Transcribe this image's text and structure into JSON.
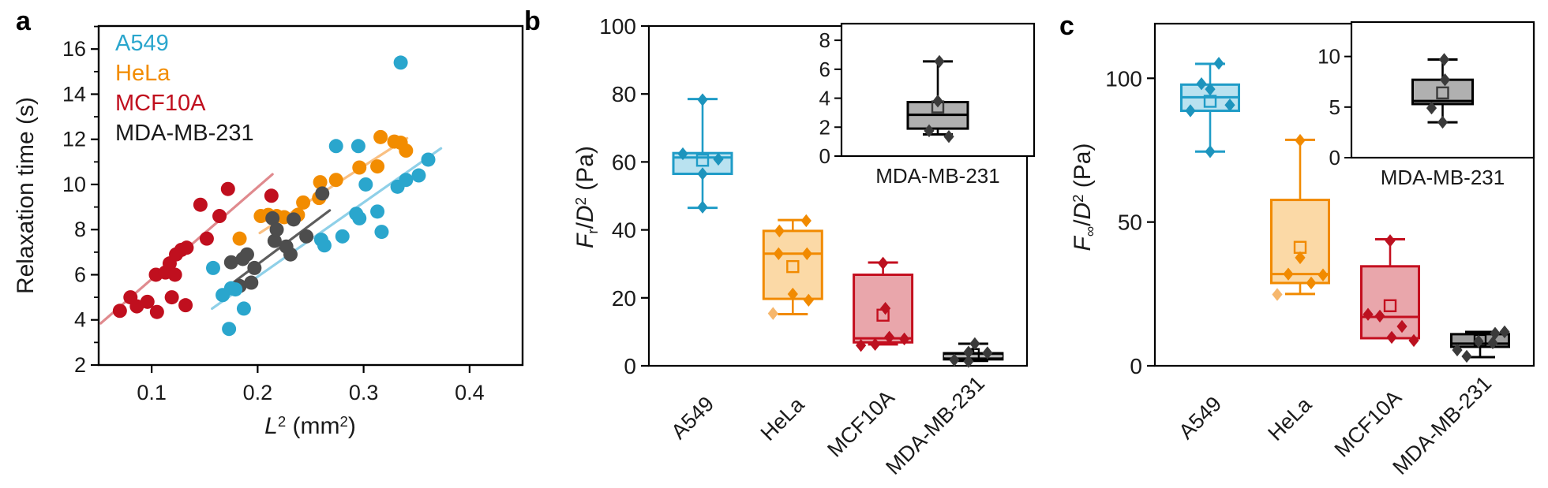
{
  "ui": {
    "panel_labels": [
      "a",
      "b",
      "c"
    ],
    "legend": [
      {
        "label": "A549",
        "color": "#2aa6cd"
      },
      {
        "label": "HeLa",
        "color": "#f28c00"
      },
      {
        "label": "MCF10A",
        "color": "#c00f1e"
      },
      {
        "label": "MDA-MB-231",
        "color": "#1a1a1a"
      }
    ],
    "rich_labels": {
      "xlabel_a": [
        [
          "L",
          "i"
        ],
        [
          "2",
          "sup"
        ],
        [
          " (mm",
          "n"
        ],
        [
          "2",
          "sup"
        ],
        [
          ")",
          "n"
        ]
      ],
      "ylabel_b": [
        [
          "F",
          "i"
        ],
        [
          "r",
          "sub"
        ],
        [
          "/",
          "n"
        ],
        [
          "D",
          "i"
        ],
        [
          "2",
          "sup"
        ],
        [
          " (Pa)",
          "n"
        ]
      ],
      "ylabel_c": [
        [
          "F",
          "i"
        ],
        [
          "∞",
          "sub"
        ],
        [
          "/",
          "n"
        ],
        [
          "D",
          "i"
        ],
        [
          "2",
          "sup"
        ],
        [
          " (Pa)",
          "n"
        ]
      ]
    }
  },
  "chart_data": [
    {
      "id": "a",
      "type": "scatter",
      "xlabel": "L^2 (mm^2)",
      "ylabel": "Relaxation time (s)",
      "xlim": [
        0.05,
        0.45
      ],
      "ylim": [
        2,
        17.02
      ],
      "x_ticks": [
        0.1,
        0.2,
        0.3,
        0.4
      ],
      "y_ticks": [
        2,
        4,
        6,
        8,
        10,
        12,
        14,
        16
      ],
      "y_minor": [
        3,
        5,
        7,
        9,
        11,
        13,
        15,
        17
      ],
      "grid": false,
      "legend_position": "top-left",
      "series": [
        {
          "name": "MCF10A",
          "color": "#c00f1e",
          "trend_color": "#e08a8e",
          "trend": [
            [
              0.052,
              3.85
            ],
            [
              0.214,
              10.45
            ]
          ],
          "points": [
            [
              0.07,
              4.4
            ],
            [
              0.08,
              5.0
            ],
            [
              0.086,
              4.6
            ],
            [
              0.096,
              4.8
            ],
            [
              0.105,
              4.35
            ],
            [
              0.104,
              6.0
            ],
            [
              0.113,
              6.1
            ],
            [
              0.117,
              6.5
            ],
            [
              0.119,
              5.0
            ],
            [
              0.122,
              6.0
            ],
            [
              0.123,
              6.9
            ],
            [
              0.128,
              7.1
            ],
            [
              0.133,
              7.2
            ],
            [
              0.132,
              4.65
            ],
            [
              0.146,
              9.1
            ],
            [
              0.152,
              7.6
            ],
            [
              0.164,
              8.6
            ],
            [
              0.172,
              9.8
            ],
            [
              0.213,
              9.5
            ]
          ]
        },
        {
          "name": "HeLa",
          "color": "#f28c00",
          "trend_color": "#f9c083",
          "trend": [
            [
              0.202,
              7.85
            ],
            [
              0.341,
              12.05
            ]
          ],
          "points": [
            [
              0.183,
              7.6
            ],
            [
              0.203,
              8.6
            ],
            [
              0.21,
              8.65
            ],
            [
              0.218,
              8.6
            ],
            [
              0.225,
              8.55
            ],
            [
              0.238,
              8.65
            ],
            [
              0.243,
              9.2
            ],
            [
              0.258,
              9.4
            ],
            [
              0.259,
              10.1
            ],
            [
              0.274,
              10.2
            ],
            [
              0.296,
              10.75
            ],
            [
              0.313,
              10.8
            ],
            [
              0.316,
              12.1
            ],
            [
              0.329,
              11.9
            ],
            [
              0.335,
              11.85
            ],
            [
              0.34,
              11.5
            ]
          ]
        },
        {
          "name": "MDA-MB-231",
          "color": "#4d4d4d",
          "trend_color": "#5d5d5d",
          "trend": [
            [
              0.174,
              5.55
            ],
            [
              0.268,
              8.85
            ]
          ],
          "points": [
            [
              0.175,
              6.55
            ],
            [
              0.183,
              5.5
            ],
            [
              0.186,
              6.7
            ],
            [
              0.19,
              6.9
            ],
            [
              0.194,
              5.65
            ],
            [
              0.197,
              6.3
            ],
            [
              0.214,
              8.5
            ],
            [
              0.216,
              7.5
            ],
            [
              0.218,
              8.0
            ],
            [
              0.227,
              7.25
            ],
            [
              0.231,
              6.9
            ],
            [
              0.234,
              8.45
            ],
            [
              0.246,
              7.7
            ],
            [
              0.261,
              9.6
            ]
          ]
        },
        {
          "name": "A549",
          "color": "#2aa6cd",
          "trend_color": "#8fd0e8",
          "trend": [
            [
              0.157,
              4.5
            ],
            [
              0.373,
              11.6
            ]
          ],
          "points": [
            [
              0.158,
              6.3
            ],
            [
              0.167,
              5.1
            ],
            [
              0.175,
              5.4
            ],
            [
              0.179,
              5.35
            ],
            [
              0.187,
              4.5
            ],
            [
              0.173,
              3.6
            ],
            [
              0.26,
              7.55
            ],
            [
              0.263,
              7.3
            ],
            [
              0.28,
              7.7
            ],
            [
              0.293,
              8.7
            ],
            [
              0.296,
              8.5
            ],
            [
              0.313,
              8.8
            ],
            [
              0.317,
              7.9
            ],
            [
              0.274,
              11.7
            ],
            [
              0.295,
              11.7
            ],
            [
              0.302,
              10.0
            ],
            [
              0.332,
              9.9
            ],
            [
              0.34,
              10.2
            ],
            [
              0.352,
              10.4
            ],
            [
              0.361,
              11.1
            ],
            [
              0.335,
              15.4
            ]
          ]
        }
      ]
    },
    {
      "id": "b",
      "type": "box",
      "ylabel": "F_r/D^2 (Pa)",
      "ylim": [
        0,
        100
      ],
      "y_ticks": [
        0,
        20,
        40,
        60,
        80,
        100
      ],
      "categories": [
        "A549",
        "HeLa",
        "MCF10A",
        "MDA-MB-231"
      ],
      "boxes": [
        {
          "name": "A549",
          "edge": "#1f9cc7",
          "fill": "#b9e2f0",
          "point": "#1d94bd",
          "lo": 46.5,
          "q1": 56.5,
          "med": 61.3,
          "q3": 62.6,
          "hi": 78.5,
          "mean": 60.5,
          "pts": [
            [
              -25,
              62.4
            ],
            [
              20,
              60.8
            ],
            [
              0,
              56.5
            ],
            [
              0,
              78.3
            ],
            [
              0,
              46.7
            ]
          ]
        },
        {
          "name": "HeLa",
          "edge": "#f18a00",
          "fill": "#fbd9a6",
          "point": "#f18a00",
          "lo": 15.2,
          "q1": 19.7,
          "med": 33,
          "q3": 39.7,
          "hi": 42.9,
          "mean": 29.2,
          "pts": [
            [
              -17,
              39.7
            ],
            [
              17,
              42.7
            ],
            [
              -18,
              33
            ],
            [
              18,
              33
            ],
            [
              0,
              21.1
            ],
            [
              20,
              19.3
            ],
            [
              -25,
              15.4,
              1
            ]
          ]
        },
        {
          "name": "MCF10A",
          "edge": "#c40f1f",
          "fill": "#e9a6ab",
          "point": "#bc1120",
          "lo": 6.3,
          "q1": 6.9,
          "med": 8.1,
          "q3": 26.8,
          "hi": 30.4,
          "mean": 14.9,
          "pts": [
            [
              0,
              30.2
            ],
            [
              3,
              16.9
            ],
            [
              8,
              8.4
            ],
            [
              27,
              7.9
            ],
            [
              -10,
              6.3
            ],
            [
              -28,
              6.0
            ]
          ]
        },
        {
          "name": "MDA-MB-231",
          "edge": "#000000",
          "fill": "#1f1f1f",
          "point": "#3a3a3a",
          "median_color": "#bbbbbb",
          "lo": 1.45,
          "q1": 1.9,
          "med": 2.85,
          "q3": 3.7,
          "hi": 6.5,
          "mean": 3.3,
          "pts": [
            [
              2,
              6.5
            ],
            [
              -6,
              4.0
            ],
            [
              18,
              3.8
            ],
            [
              -24,
              1.7
            ],
            [
              -6,
              1.3
            ]
          ]
        }
      ],
      "inset": {
        "label": "MDA-MB-231",
        "ylim": [
          0,
          9.15
        ],
        "y_ticks": [
          0,
          2,
          4,
          6,
          8
        ],
        "box": {
          "edge": "#000000",
          "fill": "#b0b0b0",
          "point": "#3a3a3a",
          "mean_color": "#3a3a3a",
          "lo": 1.5,
          "q1": 1.9,
          "med": 2.85,
          "q3": 3.73,
          "hi": 6.54,
          "mean": 3.4,
          "pts": [
            [
              2,
              6.54
            ],
            [
              0,
              3.8
            ],
            [
              -11,
              1.75
            ],
            [
              14,
              1.35
            ]
          ]
        }
      }
    },
    {
      "id": "c",
      "type": "box",
      "ylabel": "F_inf/D^2 (Pa)",
      "ylim": [
        0,
        119
      ],
      "y_ticks": [
        0,
        50,
        100
      ],
      "categories": [
        "A549",
        "HeLa",
        "MCF10A",
        "MDA-MB-231"
      ],
      "boxes": [
        {
          "name": "A549",
          "edge": "#1f9cc7",
          "fill": "#b9e2f0",
          "point": "#1d94bd",
          "lo": 74.5,
          "q1": 88.7,
          "med": 93.4,
          "q3": 97.8,
          "hi": 105,
          "mean": 92,
          "pts": [
            [
              11,
              105.2
            ],
            [
              -11,
              98.1
            ],
            [
              0,
              96.2
            ],
            [
              25,
              90.7
            ],
            [
              -25,
              88.7
            ],
            [
              0,
              74.5
            ]
          ]
        },
        {
          "name": "HeLa",
          "edge": "#f18a00",
          "fill": "#fbd9a6",
          "point": "#f18a00",
          "lo": 25,
          "q1": 28.8,
          "med": 31.9,
          "q3": 57.7,
          "hi": 78.6,
          "mean": 41.2,
          "pts": [
            [
              0,
              78.4
            ],
            [
              0,
              37.6
            ],
            [
              -15,
              31.9
            ],
            [
              29,
              31.6
            ],
            [
              14,
              28.8
            ],
            [
              -29,
              24.8,
              1
            ]
          ]
        },
        {
          "name": "MCF10A",
          "edge": "#c40f1f",
          "fill": "#e9a6ab",
          "point": "#bc1120",
          "lo": 9.6,
          "q1": 9.6,
          "med": 17.0,
          "q3": 34.6,
          "hi": 44,
          "mean": 20.9,
          "pts": [
            [
              0,
              43.5
            ],
            [
              -28,
              17.9
            ],
            [
              -13,
              17.3
            ],
            [
              15,
              13.7
            ],
            [
              2,
              9.9
            ],
            [
              30,
              8.8
            ]
          ]
        },
        {
          "name": "MDA-MB-231",
          "edge": "#000000",
          "fill": "#9c9c9c",
          "point": "#3a3a3a",
          "lo": 3.0,
          "q1": 6.6,
          "med": 7.7,
          "q3": 11.0,
          "hi": 11.8,
          "mean": 8.8,
          "pts": [
            [
              19,
              11.3
            ],
            [
              31,
              11.8
            ],
            [
              -2,
              8.5
            ],
            [
              16,
              8.0
            ],
            [
              -29,
              5.5
            ],
            [
              -17,
              3.3
            ]
          ]
        }
      ],
      "inset": {
        "label": "MDA-MB-231",
        "ylim": [
          0,
          13.4
        ],
        "y_ticks": [
          0,
          5,
          10
        ],
        "box": {
          "edge": "#000000",
          "fill": "#b0b0b0",
          "point": "#3a3a3a",
          "mean_color": "#3a3a3a",
          "lo": 3.5,
          "q1": 5.3,
          "med": 5.6,
          "q3": 7.7,
          "hi": 9.7,
          "mean": 6.4,
          "pts": [
            [
              2,
              9.7
            ],
            [
              3,
              7.7
            ],
            [
              -14,
              4.9
            ],
            [
              0,
              3.5
            ]
          ]
        }
      }
    }
  ]
}
